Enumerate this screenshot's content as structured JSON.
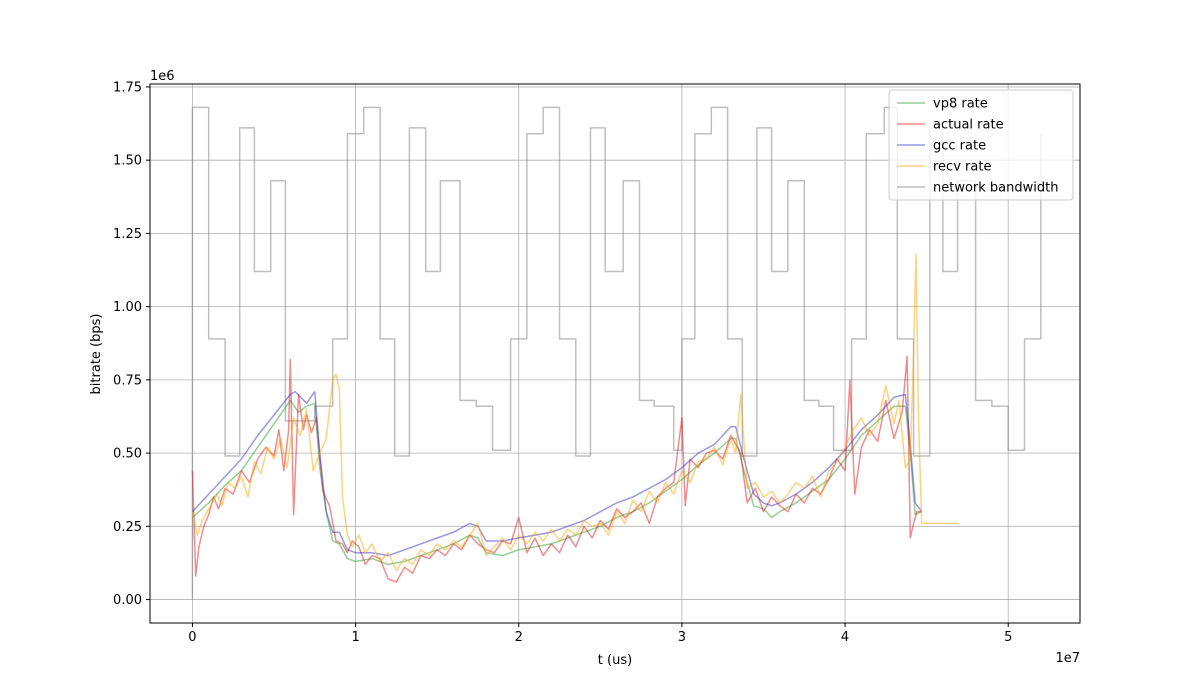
{
  "chart_data": {
    "type": "line",
    "title": "",
    "xlabel": "t (us)",
    "ylabel": "bitrate (bps)",
    "x_multiplier": "1e7",
    "y_multiplier": "1e6",
    "xlim": [
      -2600000,
      54400000
    ],
    "ylim": [
      -0.08,
      1.76
    ],
    "x_ticks": [
      0,
      1,
      2,
      3,
      4,
      5
    ],
    "y_ticks": [
      0.0,
      0.25,
      0.5,
      0.75,
      1.0,
      1.25,
      1.5,
      1.75
    ],
    "x_tick_labels": [
      "0",
      "1",
      "2",
      "3",
      "4",
      "5"
    ],
    "y_tick_labels": [
      "0.00",
      "0.25",
      "0.50",
      "0.75",
      "1.00",
      "1.25",
      "1.50",
      "1.75"
    ],
    "grid": true,
    "legend_position": "top-right",
    "series": [
      {
        "name": "vp8 rate",
        "color": "#2ca02c",
        "x": [
          0,
          1000000,
          2000000,
          3000000,
          4000000,
          5000000,
          6000000,
          6500000,
          7000000,
          7500000,
          7800000,
          8200000,
          8600000,
          9000000,
          9500000,
          10000000,
          11000000,
          12000000,
          13000000,
          14000000,
          15000000,
          16000000,
          17000000,
          17500000,
          18000000,
          19000000,
          20000000,
          21000000,
          22000000,
          23000000,
          24000000,
          25000000,
          26000000,
          27000000,
          28000000,
          29000000,
          30000000,
          31000000,
          32000000,
          33000000,
          33300000,
          33800000,
          34400000,
          35000000,
          35500000,
          36000000,
          37000000,
          38000000,
          39000000,
          40000000,
          41000000,
          42000000,
          43000000,
          43700000,
          44000000,
          44300000,
          44700000
        ],
        "y": [
          0.28,
          0.33,
          0.39,
          0.44,
          0.52,
          0.6,
          0.68,
          0.64,
          0.66,
          0.67,
          0.45,
          0.3,
          0.2,
          0.19,
          0.14,
          0.13,
          0.14,
          0.12,
          0.13,
          0.15,
          0.17,
          0.19,
          0.22,
          0.21,
          0.16,
          0.15,
          0.17,
          0.18,
          0.19,
          0.21,
          0.23,
          0.25,
          0.28,
          0.3,
          0.33,
          0.37,
          0.41,
          0.46,
          0.5,
          0.55,
          0.55,
          0.44,
          0.32,
          0.31,
          0.28,
          0.3,
          0.33,
          0.37,
          0.41,
          0.48,
          0.56,
          0.61,
          0.66,
          0.66,
          0.5,
          0.29,
          0.3
        ]
      },
      {
        "name": "actual rate",
        "color": "#e41a1c",
        "x": [
          0,
          200000,
          400000,
          700000,
          1000000,
          1300000,
          1600000,
          2000000,
          2500000,
          3000000,
          3500000,
          4000000,
          4500000,
          5000000,
          5300000,
          5600000,
          5900000,
          6000000,
          6200000,
          6500000,
          6800000,
          7000000,
          7300000,
          7600000,
          8000000,
          8400000,
          8800000,
          9200000,
          9500000,
          9800000,
          10200000,
          10600000,
          11000000,
          11500000,
          12000000,
          12500000,
          13000000,
          13500000,
          14000000,
          14500000,
          15000000,
          15500000,
          16000000,
          16500000,
          17000000,
          17500000,
          18000000,
          18500000,
          19000000,
          19500000,
          20000000,
          20500000,
          21000000,
          21500000,
          22000000,
          22500000,
          23000000,
          23500000,
          24000000,
          24500000,
          25000000,
          25500000,
          26000000,
          26500000,
          27000000,
          27500000,
          28000000,
          28500000,
          29000000,
          29500000,
          30000000,
          30200000,
          30500000,
          31000000,
          31500000,
          32000000,
          32500000,
          33000000,
          33300000,
          33600000,
          34000000,
          34500000,
          35000000,
          35500000,
          36000000,
          36500000,
          37000000,
          37500000,
          38000000,
          38500000,
          39000000,
          39500000,
          40000000,
          40300000,
          40600000,
          41000000,
          41500000,
          42000000,
          42500000,
          43000000,
          43500000,
          43800000,
          44000000,
          44200000,
          44400000,
          44700000
        ],
        "y": [
          0.44,
          0.08,
          0.18,
          0.25,
          0.29,
          0.35,
          0.31,
          0.38,
          0.36,
          0.44,
          0.4,
          0.48,
          0.52,
          0.49,
          0.58,
          0.44,
          0.58,
          0.82,
          0.29,
          0.7,
          0.58,
          0.63,
          0.57,
          0.62,
          0.37,
          0.32,
          0.2,
          0.19,
          0.16,
          0.2,
          0.18,
          0.12,
          0.15,
          0.14,
          0.07,
          0.06,
          0.11,
          0.09,
          0.15,
          0.14,
          0.17,
          0.15,
          0.19,
          0.17,
          0.22,
          0.19,
          0.17,
          0.16,
          0.2,
          0.19,
          0.28,
          0.16,
          0.21,
          0.15,
          0.19,
          0.16,
          0.22,
          0.18,
          0.25,
          0.21,
          0.27,
          0.24,
          0.31,
          0.28,
          0.3,
          0.33,
          0.26,
          0.35,
          0.38,
          0.4,
          0.62,
          0.32,
          0.48,
          0.45,
          0.5,
          0.51,
          0.48,
          0.56,
          0.53,
          0.5,
          0.33,
          0.38,
          0.3,
          0.35,
          0.32,
          0.3,
          0.36,
          0.33,
          0.38,
          0.36,
          0.41,
          0.48,
          0.44,
          0.75,
          0.36,
          0.52,
          0.58,
          0.54,
          0.68,
          0.55,
          0.64,
          0.83,
          0.21,
          0.26,
          0.3,
          0.3
        ]
      },
      {
        "name": "gcc rate",
        "color": "#3333cc",
        "x": [
          0,
          1000000,
          2000000,
          3000000,
          4000000,
          5000000,
          6000000,
          6300000,
          7000000,
          7500000,
          7800000,
          8200000,
          8600000,
          9000000,
          9500000,
          10000000,
          11000000,
          12000000,
          13000000,
          14000000,
          15000000,
          16000000,
          17000000,
          17500000,
          18000000,
          19000000,
          20000000,
          21000000,
          22000000,
          23000000,
          24000000,
          25000000,
          26000000,
          27000000,
          28000000,
          29000000,
          30000000,
          31000000,
          32000000,
          33000000,
          33300000,
          33800000,
          34400000,
          35000000,
          35500000,
          36000000,
          37000000,
          38000000,
          39000000,
          40000000,
          41000000,
          42000000,
          43000000,
          43700000,
          44000000,
          44300000,
          44700000
        ],
        "y": [
          0.3,
          0.36,
          0.42,
          0.48,
          0.56,
          0.63,
          0.7,
          0.71,
          0.67,
          0.71,
          0.5,
          0.3,
          0.23,
          0.23,
          0.17,
          0.16,
          0.16,
          0.15,
          0.17,
          0.19,
          0.21,
          0.23,
          0.26,
          0.25,
          0.2,
          0.2,
          0.21,
          0.22,
          0.23,
          0.25,
          0.27,
          0.3,
          0.33,
          0.35,
          0.38,
          0.41,
          0.45,
          0.5,
          0.53,
          0.59,
          0.59,
          0.48,
          0.36,
          0.33,
          0.32,
          0.33,
          0.36,
          0.4,
          0.45,
          0.51,
          0.58,
          0.63,
          0.69,
          0.7,
          0.53,
          0.33,
          0.3
        ]
      },
      {
        "name": "recv rate",
        "color": "#ffa500",
        "x": [
          0,
          300000,
          600000,
          900000,
          1200000,
          1500000,
          1800000,
          2200000,
          2600000,
          3000000,
          3400000,
          3800000,
          4200000,
          4600000,
          5000000,
          5400000,
          5800000,
          6200000,
          6600000,
          7000000,
          7400000,
          7800000,
          8200000,
          8600000,
          8800000,
          9000000,
          9200000,
          9500000,
          9800000,
          10200000,
          10600000,
          11000000,
          11500000,
          12000000,
          12500000,
          13000000,
          13500000,
          14000000,
          14500000,
          15000000,
          15500000,
          16000000,
          16500000,
          17000000,
          17500000,
          18000000,
          18500000,
          19000000,
          19500000,
          20000000,
          20500000,
          21000000,
          21500000,
          22000000,
          22500000,
          23000000,
          23500000,
          24000000,
          24500000,
          25000000,
          25500000,
          26000000,
          26500000,
          27000000,
          27500000,
          28000000,
          28500000,
          29000000,
          29500000,
          30000000,
          30500000,
          31000000,
          31500000,
          32000000,
          32500000,
          33000000,
          33300000,
          33600000,
          34000000,
          34500000,
          35000000,
          35500000,
          36000000,
          36500000,
          37000000,
          37500000,
          38000000,
          38500000,
          39000000,
          39500000,
          40000000,
          40500000,
          41000000,
          41500000,
          42000000,
          42500000,
          43000000,
          43300000,
          43700000,
          44000000,
          44200000,
          44350000,
          44500000,
          44700000,
          45000000,
          46000000,
          47000000
        ],
        "y": [
          0.3,
          0.22,
          0.27,
          0.3,
          0.33,
          0.36,
          0.32,
          0.4,
          0.38,
          0.42,
          0.35,
          0.47,
          0.43,
          0.52,
          0.48,
          0.55,
          0.45,
          0.62,
          0.56,
          0.65,
          0.44,
          0.5,
          0.55,
          0.75,
          0.77,
          0.72,
          0.35,
          0.22,
          0.18,
          0.22,
          0.16,
          0.19,
          0.13,
          0.16,
          0.1,
          0.14,
          0.12,
          0.17,
          0.15,
          0.19,
          0.17,
          0.2,
          0.18,
          0.22,
          0.26,
          0.15,
          0.18,
          0.21,
          0.17,
          0.22,
          0.19,
          0.23,
          0.2,
          0.24,
          0.2,
          0.24,
          0.22,
          0.27,
          0.25,
          0.26,
          0.22,
          0.3,
          0.26,
          0.34,
          0.3,
          0.37,
          0.33,
          0.4,
          0.36,
          0.44,
          0.4,
          0.47,
          0.48,
          0.52,
          0.46,
          0.55,
          0.5,
          0.7,
          0.38,
          0.4,
          0.35,
          0.37,
          0.33,
          0.36,
          0.4,
          0.38,
          0.42,
          0.35,
          0.44,
          0.47,
          0.52,
          0.58,
          0.62,
          0.56,
          0.6,
          0.73,
          0.6,
          0.68,
          0.45,
          0.48,
          0.85,
          1.18,
          0.62,
          0.26,
          0.26,
          0.26,
          0.26
        ]
      },
      {
        "name": "network bandwidth",
        "color": "#808080",
        "step": true,
        "x": [
          0,
          1000000,
          2000000,
          2900000,
          3800000,
          4800000,
          5700000,
          7500000,
          8600000,
          9500000,
          10500000,
          11500000,
          12400000,
          13300000,
          14300000,
          15200000,
          16400000,
          17400000,
          18400000,
          19500000,
          20500000,
          21500000,
          22500000,
          23500000,
          24400000,
          25300000,
          26400000,
          27400000,
          28300000,
          29500000,
          30000000,
          30800000,
          31800000,
          32800000,
          33700000,
          34600000,
          35500000,
          36500000,
          37500000,
          38400000,
          39300000,
          40400000,
          41300000,
          42400000,
          43200000,
          44200000,
          45200000,
          46000000,
          46900000,
          48000000,
          49000000,
          50000000,
          51000000,
          52000000
        ],
        "y": [
          1.68,
          0.89,
          0.49,
          1.61,
          1.12,
          1.43,
          0.61,
          0.66,
          0.89,
          1.59,
          1.68,
          0.89,
          0.49,
          1.61,
          1.12,
          1.43,
          0.68,
          0.66,
          0.51,
          0.89,
          1.59,
          1.68,
          0.89,
          0.49,
          1.61,
          1.12,
          1.43,
          0.68,
          0.66,
          0.51,
          0.89,
          1.59,
          1.68,
          0.89,
          0.49,
          1.61,
          1.12,
          1.43,
          0.68,
          0.66,
          0.51,
          0.89,
          1.59,
          1.68,
          0.89,
          0.49,
          1.61,
          1.12,
          1.43,
          0.68,
          0.66,
          0.51,
          0.89,
          1.59
        ]
      }
    ]
  }
}
